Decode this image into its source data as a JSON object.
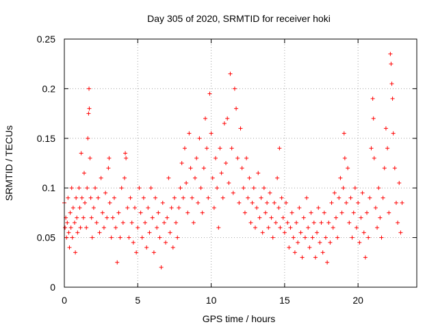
{
  "chart_data": {
    "type": "scatter",
    "title": "Day 305 of 2020, SRMTID for receiver hoki",
    "xlabel": "GPS time / hours",
    "ylabel": "SRMTID / TECUs",
    "xlim": [
      0,
      24
    ],
    "ylim": [
      0,
      0.25
    ],
    "xticks": [
      0,
      5,
      10,
      15,
      20
    ],
    "xtick_labels": [
      "0",
      "5",
      "10",
      "15",
      "20"
    ],
    "yticks": [
      0,
      0.05,
      0.1,
      0.15,
      0.2,
      0.25
    ],
    "ytick_labels": [
      "0",
      "0.05",
      "0.1",
      "0.15",
      "0.2",
      "0.25"
    ],
    "grid": true,
    "marker": "+",
    "color": "#ff0000",
    "series": [
      {
        "name": "SRMTID",
        "points": [
          [
            0.0,
            0.085
          ],
          [
            0.05,
            0.06
          ],
          [
            0.1,
            0.07
          ],
          [
            0.15,
            0.05
          ],
          [
            0.2,
            0.065
          ],
          [
            0.25,
            0.09
          ],
          [
            0.3,
            0.055
          ],
          [
            0.35,
            0.04
          ],
          [
            0.4,
            0.075
          ],
          [
            0.45,
            0.06
          ],
          [
            0.5,
            0.1
          ],
          [
            0.55,
            0.05
          ],
          [
            0.6,
            0.08
          ],
          [
            0.7,
            0.065
          ],
          [
            0.75,
            0.035
          ],
          [
            0.8,
            0.09
          ],
          [
            0.85,
            0.07
          ],
          [
            0.9,
            0.055
          ],
          [
            1.0,
            0.1
          ],
          [
            1.05,
            0.08
          ],
          [
            1.1,
            0.06
          ],
          [
            1.15,
            0.135
          ],
          [
            1.2,
            0.09
          ],
          [
            1.3,
            0.07
          ],
          [
            1.35,
            0.115
          ],
          [
            1.4,
            0.085
          ],
          [
            1.5,
            0.06
          ],
          [
            1.55,
            0.1
          ],
          [
            1.6,
            0.15
          ],
          [
            1.65,
            0.175
          ],
          [
            1.68,
            0.2
          ],
          [
            1.7,
            0.18
          ],
          [
            1.75,
            0.13
          ],
          [
            1.8,
            0.09
          ],
          [
            1.85,
            0.07
          ],
          [
            1.9,
            0.05
          ],
          [
            2.0,
            0.08
          ],
          [
            2.1,
            0.1
          ],
          [
            2.2,
            0.065
          ],
          [
            2.3,
            0.09
          ],
          [
            2.4,
            0.055
          ],
          [
            2.5,
            0.11
          ],
          [
            2.6,
            0.075
          ],
          [
            2.7,
            0.06
          ],
          [
            2.8,
            0.095
          ],
          [
            2.9,
            0.07
          ],
          [
            3.0,
            0.12
          ],
          [
            3.05,
            0.13
          ],
          [
            3.1,
            0.085
          ],
          [
            3.2,
            0.05
          ],
          [
            3.3,
            0.07
          ],
          [
            3.4,
            0.09
          ],
          [
            3.5,
            0.06
          ],
          [
            3.6,
            0.025
          ],
          [
            3.7,
            0.075
          ],
          [
            3.8,
            0.05
          ],
          [
            3.9,
            0.1
          ],
          [
            4.0,
            0.065
          ],
          [
            4.1,
            0.11
          ],
          [
            4.15,
            0.135
          ],
          [
            4.2,
            0.13
          ],
          [
            4.3,
            0.08
          ],
          [
            4.4,
            0.05
          ],
          [
            4.5,
            0.09
          ],
          [
            4.6,
            0.065
          ],
          [
            4.7,
            0.045
          ],
          [
            4.8,
            0.08
          ],
          [
            4.9,
            0.035
          ],
          [
            5.0,
            0.06
          ],
          [
            5.1,
            0.1
          ],
          [
            5.2,
            0.075
          ],
          [
            5.3,
            0.05
          ],
          [
            5.4,
            0.09
          ],
          [
            5.5,
            0.065
          ],
          [
            5.6,
            0.04
          ],
          [
            5.7,
            0.08
          ],
          [
            5.8,
            0.055
          ],
          [
            5.9,
            0.1
          ],
          [
            6.0,
            0.07
          ],
          [
            6.1,
            0.035
          ],
          [
            6.2,
            0.09
          ],
          [
            6.3,
            0.06
          ],
          [
            6.4,
            0.075
          ],
          [
            6.5,
            0.05
          ],
          [
            6.6,
            0.02
          ],
          [
            6.7,
            0.085
          ],
          [
            6.8,
            0.065
          ],
          [
            6.9,
            0.045
          ],
          [
            7.0,
            0.07
          ],
          [
            7.1,
            0.11
          ],
          [
            7.2,
            0.055
          ],
          [
            7.3,
            0.08
          ],
          [
            7.4,
            0.04
          ],
          [
            7.5,
            0.09
          ],
          [
            7.6,
            0.065
          ],
          [
            7.7,
            0.05
          ],
          [
            7.8,
            0.08
          ],
          [
            7.9,
            0.1
          ],
          [
            8.0,
            0.125
          ],
          [
            8.1,
            0.09
          ],
          [
            8.2,
            0.14
          ],
          [
            8.3,
            0.105
          ],
          [
            8.4,
            0.075
          ],
          [
            8.5,
            0.155
          ],
          [
            8.6,
            0.12
          ],
          [
            8.7,
            0.09
          ],
          [
            8.8,
            0.065
          ],
          [
            8.9,
            0.11
          ],
          [
            9.0,
            0.13
          ],
          [
            9.1,
            0.085
          ],
          [
            9.2,
            0.15
          ],
          [
            9.3,
            0.1
          ],
          [
            9.4,
            0.075
          ],
          [
            9.5,
            0.12
          ],
          [
            9.6,
            0.17
          ],
          [
            9.7,
            0.14
          ],
          [
            9.8,
            0.09
          ],
          [
            9.9,
            0.195
          ],
          [
            10.0,
            0.155
          ],
          [
            10.1,
            0.11
          ],
          [
            10.2,
            0.08
          ],
          [
            10.3,
            0.13
          ],
          [
            10.4,
            0.1
          ],
          [
            10.5,
            0.06
          ],
          [
            10.6,
            0.14
          ],
          [
            10.7,
            0.115
          ],
          [
            10.8,
            0.09
          ],
          [
            10.9,
            0.165
          ],
          [
            11.0,
            0.125
          ],
          [
            11.1,
            0.17
          ],
          [
            11.2,
            0.105
          ],
          [
            11.3,
            0.215
          ],
          [
            11.4,
            0.14
          ],
          [
            11.5,
            0.095
          ],
          [
            11.6,
            0.2
          ],
          [
            11.7,
            0.18
          ],
          [
            11.8,
            0.13
          ],
          [
            11.9,
            0.085
          ],
          [
            12.0,
            0.16
          ],
          [
            12.1,
            0.12
          ],
          [
            12.2,
            0.1
          ],
          [
            12.3,
            0.075
          ],
          [
            12.4,
            0.13
          ],
          [
            12.5,
            0.09
          ],
          [
            12.6,
            0.11
          ],
          [
            12.7,
            0.065
          ],
          [
            12.8,
            0.085
          ],
          [
            12.9,
            0.1
          ],
          [
            13.0,
            0.06
          ],
          [
            13.1,
            0.08
          ],
          [
            13.2,
            0.115
          ],
          [
            13.3,
            0.07
          ],
          [
            13.4,
            0.09
          ],
          [
            13.5,
            0.055
          ],
          [
            13.6,
            0.1
          ],
          [
            13.7,
            0.075
          ],
          [
            13.8,
            0.085
          ],
          [
            13.9,
            0.06
          ],
          [
            14.0,
            0.095
          ],
          [
            14.1,
            0.07
          ],
          [
            14.2,
            0.05
          ],
          [
            14.3,
            0.085
          ],
          [
            14.4,
            0.065
          ],
          [
            14.5,
            0.11
          ],
          [
            14.6,
            0.08
          ],
          [
            14.65,
            0.14
          ],
          [
            14.7,
            0.06
          ],
          [
            14.8,
            0.09
          ],
          [
            14.9,
            0.07
          ],
          [
            15.0,
            0.055
          ],
          [
            15.1,
            0.085
          ],
          [
            15.2,
            0.065
          ],
          [
            15.3,
            0.04
          ],
          [
            15.4,
            0.06
          ],
          [
            15.5,
            0.075
          ],
          [
            15.6,
            0.05
          ],
          [
            15.7,
            0.035
          ],
          [
            15.8,
            0.065
          ],
          [
            15.9,
            0.045
          ],
          [
            16.0,
            0.08
          ],
          [
            16.1,
            0.055
          ],
          [
            16.2,
            0.03
          ],
          [
            16.3,
            0.07
          ],
          [
            16.4,
            0.05
          ],
          [
            16.5,
            0.09
          ],
          [
            16.6,
            0.06
          ],
          [
            16.7,
            0.04
          ],
          [
            16.8,
            0.075
          ],
          [
            16.9,
            0.05
          ],
          [
            17.0,
            0.065
          ],
          [
            17.1,
            0.03
          ],
          [
            17.2,
            0.055
          ],
          [
            17.3,
            0.08
          ],
          [
            17.4,
            0.045
          ],
          [
            17.5,
            0.065
          ],
          [
            17.6,
            0.035
          ],
          [
            17.7,
            0.075
          ],
          [
            17.8,
            0.05
          ],
          [
            17.9,
            0.025
          ],
          [
            18.0,
            0.065
          ],
          [
            18.1,
            0.045
          ],
          [
            18.2,
            0.085
          ],
          [
            18.3,
            0.06
          ],
          [
            18.4,
            0.095
          ],
          [
            18.5,
            0.07
          ],
          [
            18.6,
            0.05
          ],
          [
            18.7,
            0.09
          ],
          [
            18.8,
            0.11
          ],
          [
            18.9,
            0.075
          ],
          [
            19.0,
            0.1
          ],
          [
            19.05,
            0.155
          ],
          [
            19.1,
            0.13
          ],
          [
            19.2,
            0.085
          ],
          [
            19.3,
            0.12
          ],
          [
            19.4,
            0.065
          ],
          [
            19.5,
            0.09
          ],
          [
            19.6,
            0.05
          ],
          [
            19.7,
            0.075
          ],
          [
            19.8,
            0.1
          ],
          [
            19.9,
            0.06
          ],
          [
            20.0,
            0.085
          ],
          [
            20.1,
            0.045
          ],
          [
            20.2,
            0.07
          ],
          [
            20.3,
            0.095
          ],
          [
            20.4,
            0.055
          ],
          [
            20.5,
            0.03
          ],
          [
            20.6,
            0.075
          ],
          [
            20.7,
            0.05
          ],
          [
            20.8,
            0.09
          ],
          [
            20.9,
            0.14
          ],
          [
            21.0,
            0.19
          ],
          [
            21.05,
            0.17
          ],
          [
            21.1,
            0.13
          ],
          [
            21.2,
            0.08
          ],
          [
            21.3,
            0.06
          ],
          [
            21.4,
            0.1
          ],
          [
            21.5,
            0.07
          ],
          [
            21.6,
            0.05
          ],
          [
            21.7,
            0.09
          ],
          [
            21.8,
            0.12
          ],
          [
            21.9,
            0.16
          ],
          [
            22.0,
            0.14
          ],
          [
            22.1,
            0.075
          ],
          [
            22.2,
            0.235
          ],
          [
            22.25,
            0.225
          ],
          [
            22.3,
            0.205
          ],
          [
            22.35,
            0.19
          ],
          [
            22.4,
            0.155
          ],
          [
            22.5,
            0.12
          ],
          [
            22.6,
            0.085
          ],
          [
            22.7,
            0.065
          ],
          [
            22.8,
            0.105
          ],
          [
            22.9,
            0.055
          ],
          [
            23.0,
            0.085
          ]
        ]
      }
    ]
  }
}
